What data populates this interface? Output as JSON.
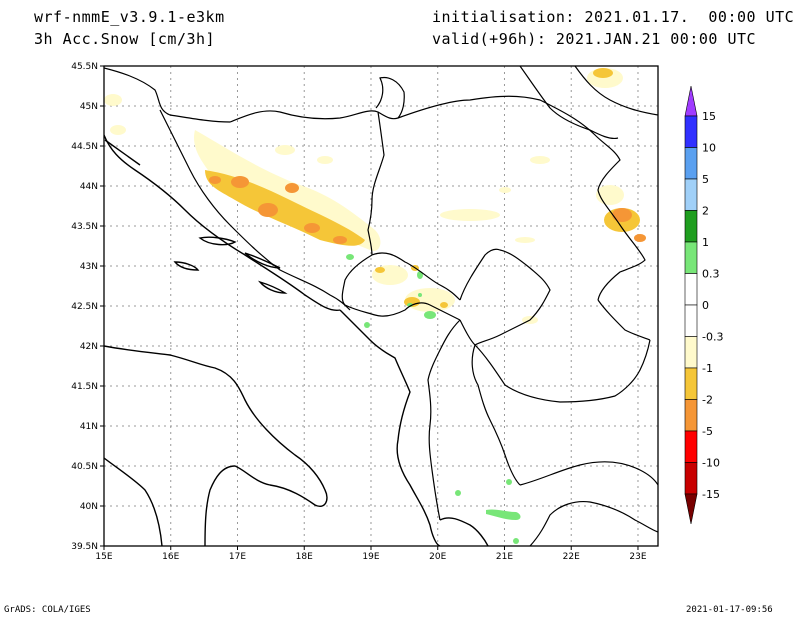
{
  "header": {
    "model": "wrf-nmmE_v3.9.1-e3km",
    "field": "3h Acc.Snow [cm/3h]",
    "init": "initialisation: 2021.01.17.  00:00 UTC",
    "valid": "valid(+96h): 2021.JAN.21 00:00 UTC"
  },
  "footer": {
    "left": "GrADS: COLA/IGES",
    "right": "2021-01-17-09:56"
  },
  "map": {
    "lon_labels": [
      "15E",
      "16E",
      "17E",
      "18E",
      "19E",
      "20E",
      "21E",
      "22E",
      "23E"
    ],
    "lat_labels": [
      "45.5N",
      "45N",
      "44.5N",
      "44N",
      "43.5N",
      "43N",
      "42.5N",
      "42N",
      "41.5N",
      "41N",
      "40.5N",
      "40N",
      "39.5N"
    ],
    "lon_range": [
      15,
      23.3
    ],
    "lat_range": [
      39.5,
      45.5
    ],
    "grid": true
  },
  "colorbar": {
    "labels": [
      "15",
      "10",
      "5",
      "2",
      "1",
      "0.3",
      "0",
      "-0.3",
      "-1",
      "-2",
      "-5",
      "-10",
      "-15"
    ],
    "colors": [
      "#3030ff",
      "#5aa0f0",
      "#a0d0f8",
      "#1f9e1f",
      "#78e678",
      "#ffffff",
      "#ffffff",
      "#fffacc",
      "#f5c638",
      "#f59636",
      "#ff0000",
      "#c80000",
      "#960000"
    ],
    "top_tip": "#a03cff",
    "bottom_tip": "#780000"
  }
}
